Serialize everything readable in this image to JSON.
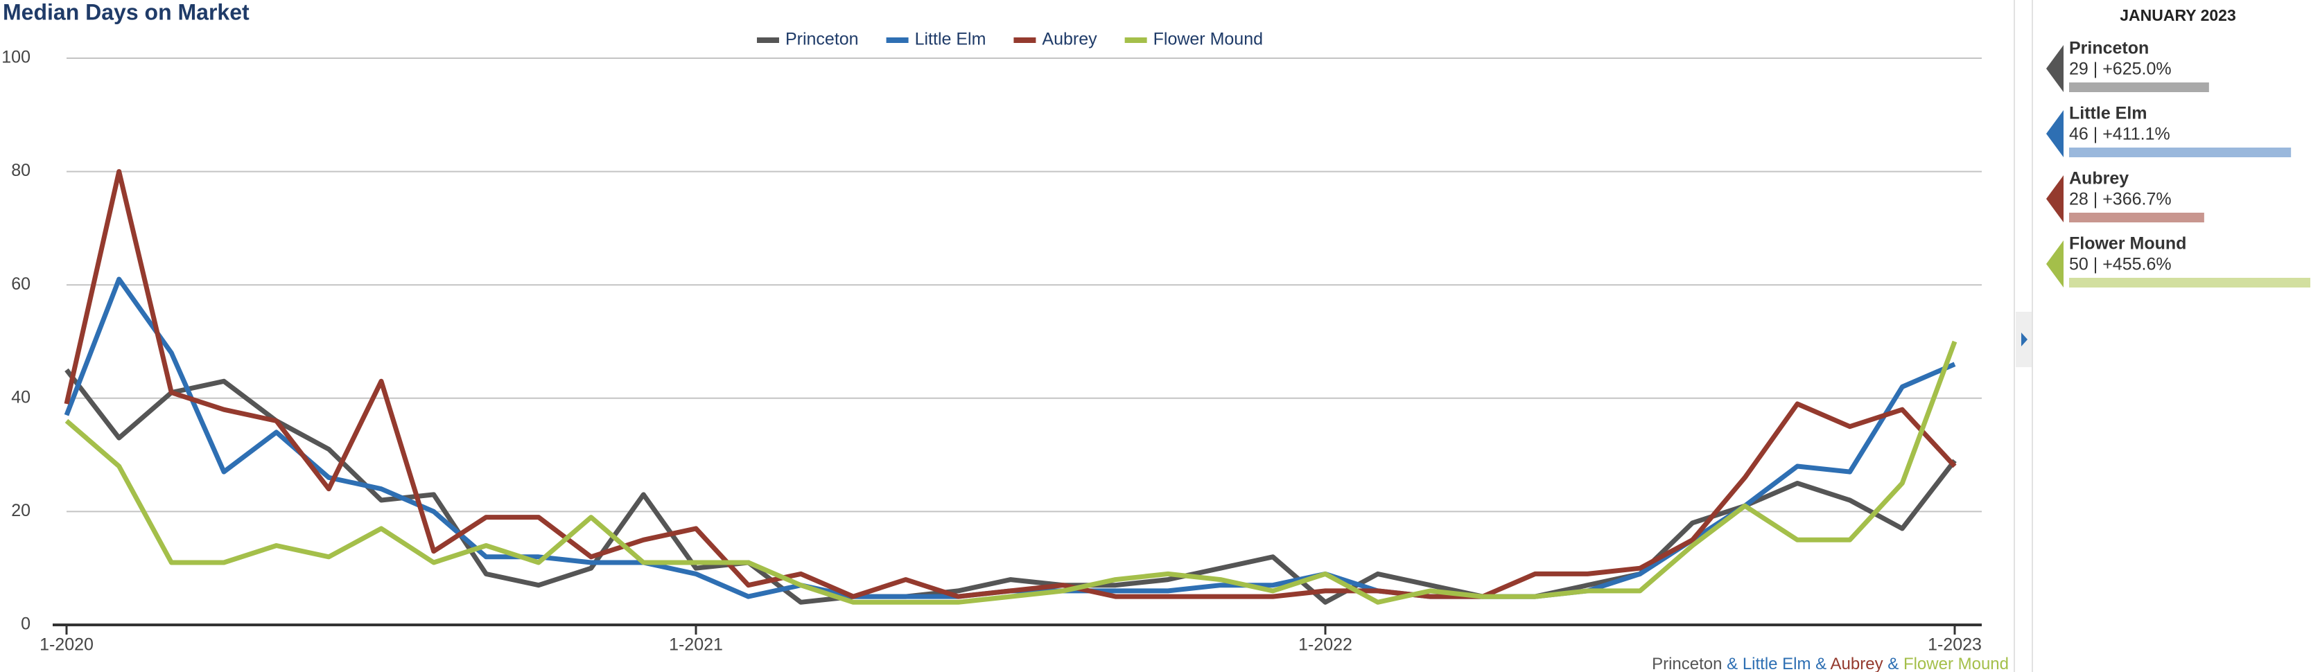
{
  "chart_data": {
    "type": "line",
    "title": "Median Days on Market",
    "categories": [
      "1-2020",
      null,
      null,
      null,
      null,
      null,
      null,
      null,
      null,
      null,
      null,
      null,
      "1-2021",
      null,
      null,
      null,
      null,
      null,
      null,
      null,
      null,
      null,
      null,
      null,
      "1-2022",
      null,
      null,
      null,
      null,
      null,
      null,
      null,
      null,
      null,
      null,
      null,
      "1-2023"
    ],
    "series": [
      {
        "name": "Princeton",
        "color": "#555555",
        "values": [
          45,
          33,
          41,
          43,
          36,
          31,
          22,
          23,
          9,
          7,
          10,
          23,
          10,
          11,
          4,
          5,
          5,
          6,
          8,
          7,
          7,
          8,
          10,
          12,
          4,
          9,
          7,
          5,
          5,
          7,
          9,
          18,
          21,
          25,
          22,
          17,
          29
        ]
      },
      {
        "name": "Little Elm",
        "color": "#2e6fb3",
        "values": [
          37,
          61,
          48,
          27,
          34,
          26,
          24,
          20,
          12,
          12,
          11,
          11,
          9,
          5,
          7,
          5,
          5,
          5,
          6,
          6,
          6,
          6,
          7,
          7,
          9,
          6,
          5,
          5,
          5,
          6,
          9,
          15,
          21,
          28,
          27,
          42,
          46
        ]
      },
      {
        "name": "Aubrey",
        "color": "#943a2e",
        "values": [
          39,
          80,
          41,
          38,
          36,
          24,
          43,
          13,
          19,
          19,
          12,
          15,
          17,
          7,
          9,
          5,
          8,
          5,
          6,
          7,
          5,
          5,
          5,
          5,
          6,
          6,
          5,
          5,
          9,
          9,
          10,
          15,
          26,
          39,
          35,
          38,
          28
        ]
      },
      {
        "name": "Flower Mound",
        "color": "#a4bf4a",
        "values": [
          36,
          28,
          11,
          11,
          14,
          12,
          17,
          11,
          14,
          11,
          19,
          11,
          11,
          11,
          7,
          4,
          4,
          4,
          5,
          6,
          8,
          9,
          8,
          6,
          9,
          4,
          6,
          5,
          5,
          6,
          6,
          14,
          21,
          15,
          15,
          25,
          50
        ]
      }
    ],
    "ylim": [
      0,
      100
    ],
    "yticks": [
      0,
      20,
      40,
      60,
      80,
      100
    ],
    "grid": true,
    "legend": "top"
  },
  "panel": {
    "title": "JANUARY 2023",
    "entries": [
      {
        "name": "Princeton",
        "value": 29,
        "value_label": "29 | +625.0%",
        "color": "#555555",
        "bar_color": "#a9a9a9"
      },
      {
        "name": "Little Elm",
        "value": 46,
        "value_label": "46 | +411.1%",
        "color": "#2e6fb3",
        "bar_color": "#9ab8dc"
      },
      {
        "name": "Aubrey",
        "value": 28,
        "value_label": "28 | +366.7%",
        "color": "#943a2e",
        "bar_color": "#c8968f"
      },
      {
        "name": "Flower Mound",
        "value": 50,
        "value_label": "50 | +455.6%",
        "color": "#a4bf4a",
        "bar_color": "#d2df9f"
      }
    ]
  },
  "footer": {
    "separator": "&"
  }
}
